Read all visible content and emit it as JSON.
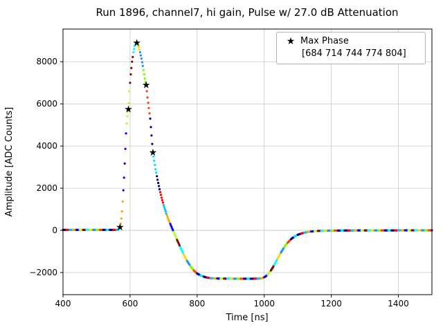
{
  "chart_data": {
    "type": "scatter",
    "title": "Run 1896, channel7, hi gain, Pulse w/ 27.0 dB Attenuation",
    "xlabel": "Time [ns]",
    "ylabel": "Amplitude [ADC Counts]",
    "xlim": [
      400,
      1500
    ],
    "ylim": [
      -3050,
      9550
    ],
    "xticks": [
      400,
      600,
      800,
      1000,
      1200,
      1400
    ],
    "yticks": [
      -2000,
      0,
      2000,
      4000,
      6000,
      8000
    ],
    "grid": true,
    "legend": {
      "position": "upper right",
      "marker_glyph": "★",
      "label": "Max Phase",
      "values_line": "[684 714 744 774 804]"
    },
    "max_phase_indices": [
      684,
      714,
      744,
      774,
      804
    ],
    "max_phase_points": [
      [
        570,
        150
      ],
      [
        595,
        5750
      ],
      [
        620,
        8900
      ],
      [
        648,
        6900
      ],
      [
        668,
        3700
      ]
    ],
    "waveform_points": [
      [
        400,
        20
      ],
      [
        560,
        20
      ],
      [
        565,
        40
      ],
      [
        570,
        150
      ],
      [
        573,
        400
      ],
      [
        576,
        900
      ],
      [
        579,
        1600
      ],
      [
        582,
        2500
      ],
      [
        585,
        3500
      ],
      [
        588,
        4600
      ],
      [
        591,
        5300
      ],
      [
        595,
        5750
      ],
      [
        598,
        6600
      ],
      [
        602,
        7400
      ],
      [
        606,
        8000
      ],
      [
        610,
        8450
      ],
      [
        614,
        8750
      ],
      [
        618,
        8880
      ],
      [
        620,
        8900
      ],
      [
        623,
        8850
      ],
      [
        626,
        8700
      ],
      [
        630,
        8450
      ],
      [
        634,
        8150
      ],
      [
        638,
        7800
      ],
      [
        642,
        7400
      ],
      [
        645,
        7100
      ],
      [
        648,
        6900
      ],
      [
        652,
        6300
      ],
      [
        656,
        5800
      ],
      [
        660,
        5300
      ],
      [
        664,
        4500
      ],
      [
        668,
        3700
      ],
      [
        672,
        3300
      ],
      [
        676,
        2900
      ],
      [
        682,
        2400
      ],
      [
        688,
        1950
      ],
      [
        694,
        1550
      ],
      [
        700,
        1200
      ],
      [
        708,
        800
      ],
      [
        716,
        450
      ],
      [
        724,
        150
      ],
      [
        732,
        -150
      ],
      [
        740,
        -450
      ],
      [
        750,
        -800
      ],
      [
        760,
        -1150
      ],
      [
        770,
        -1450
      ],
      [
        780,
        -1700
      ],
      [
        790,
        -1900
      ],
      [
        800,
        -2050
      ],
      [
        812,
        -2150
      ],
      [
        824,
        -2220
      ],
      [
        836,
        -2260
      ],
      [
        850,
        -2280
      ],
      [
        880,
        -2290
      ],
      [
        920,
        -2295
      ],
      [
        960,
        -2295
      ],
      [
        985,
        -2290
      ],
      [
        995,
        -2260
      ],
      [
        1003,
        -2200
      ],
      [
        1010,
        -2100
      ],
      [
        1018,
        -1950
      ],
      [
        1026,
        -1750
      ],
      [
        1034,
        -1520
      ],
      [
        1042,
        -1280
      ],
      [
        1050,
        -1050
      ],
      [
        1058,
        -840
      ],
      [
        1066,
        -660
      ],
      [
        1074,
        -510
      ],
      [
        1082,
        -390
      ],
      [
        1090,
        -295
      ],
      [
        1100,
        -210
      ],
      [
        1112,
        -140
      ],
      [
        1124,
        -95
      ],
      [
        1136,
        -62
      ],
      [
        1150,
        -38
      ],
      [
        1170,
        -20
      ],
      [
        1200,
        -10
      ],
      [
        1250,
        -4
      ],
      [
        1300,
        -2
      ],
      [
        1400,
        0
      ],
      [
        1500,
        0
      ]
    ],
    "sample_step_ns": 2,
    "style": {
      "marker_color_palette": [
        "#000080",
        "#ff0000",
        "#00bfff",
        "#ffa500",
        "#0000ff",
        "#adff2f",
        "#8b0000",
        "#00ffff",
        "#ffd700",
        "#1e90ff",
        "#7cfc00",
        "#ff4500",
        "#000099",
        "#00e5ee"
      ],
      "color_run_length": 5,
      "grid_color": "#c9c9c9",
      "star_color": "#000000"
    }
  }
}
